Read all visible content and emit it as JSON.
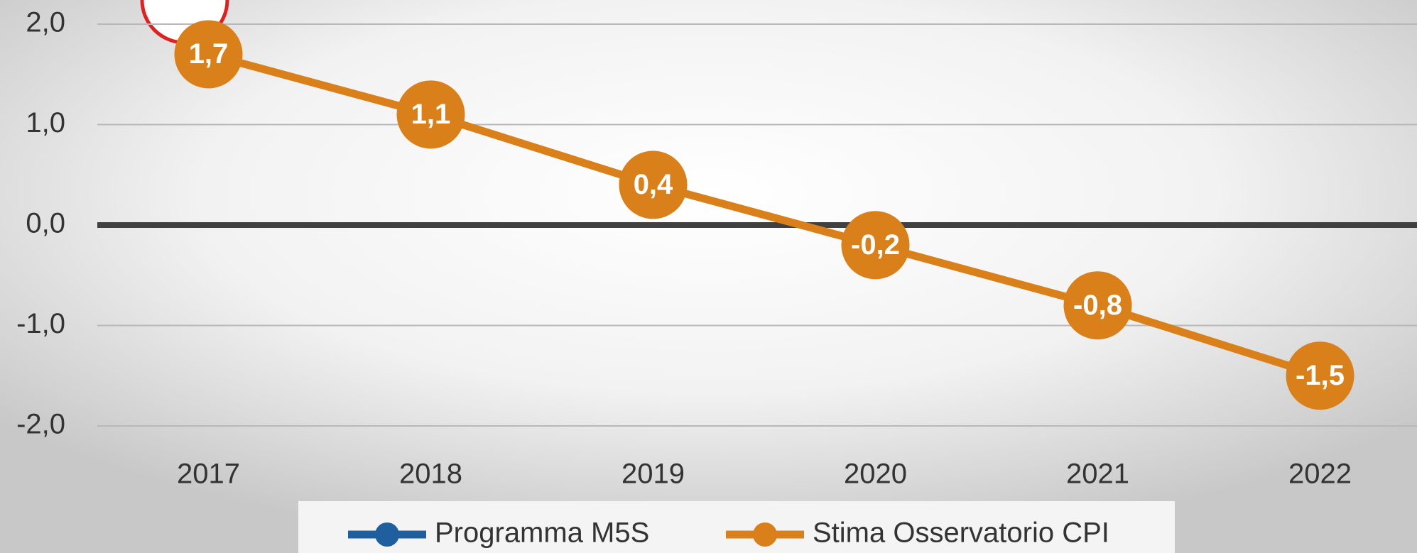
{
  "chart_data": {
    "type": "line",
    "categories": [
      "2017",
      "2018",
      "2019",
      "2020",
      "2021",
      "2022"
    ],
    "series": [
      {
        "name": "Programma M5S",
        "color": "#1f5f9e",
        "values": [
          null,
          null,
          null,
          null,
          null,
          null
        ]
      },
      {
        "name": "Stima Osservatorio CPI",
        "color": "#d9801a",
        "values": [
          1.7,
          1.1,
          0.4,
          -0.2,
          -0.8,
          -1.5
        ],
        "value_labels": [
          "1,7",
          "1,1",
          "0,4",
          "-0,2",
          "-0,8",
          "-1,5"
        ]
      }
    ],
    "ylim": [
      -2,
      2
    ],
    "yticks": [
      {
        "value": 2,
        "label": "2,0"
      },
      {
        "value": 1,
        "label": "1,0"
      },
      {
        "value": 0,
        "label": "0,0"
      },
      {
        "value": -1,
        "label": "-1,0"
      },
      {
        "value": -2,
        "label": "-2,0"
      }
    ],
    "grid": true
  }
}
